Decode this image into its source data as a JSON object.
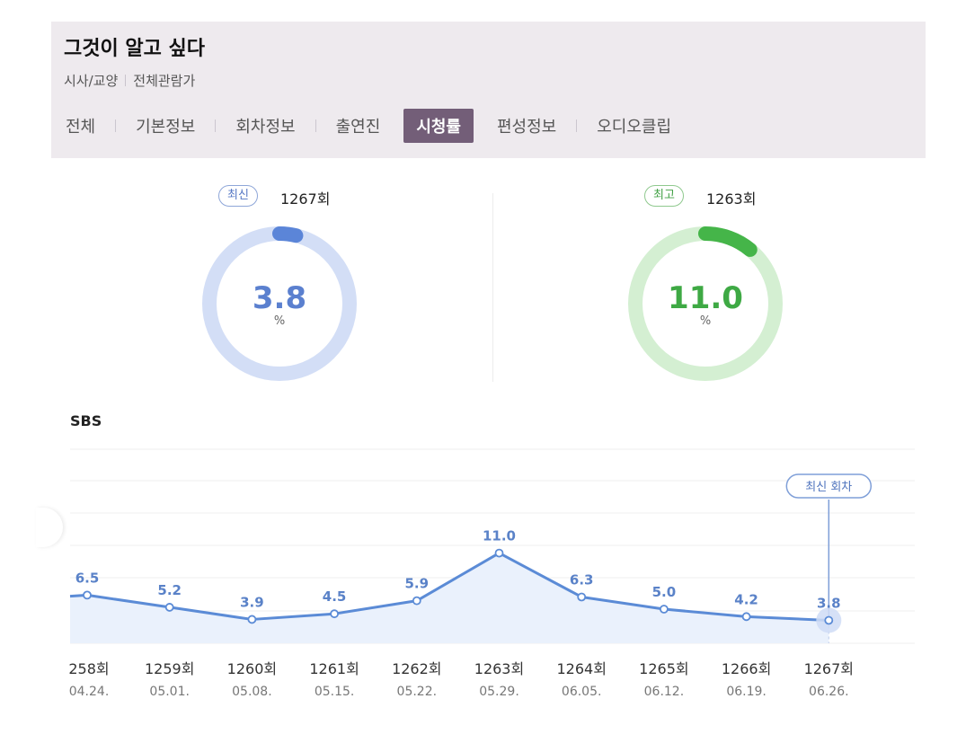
{
  "program": {
    "title": "그것이 알고 싶다",
    "genre": "시사/교양",
    "rating": "전체관람가"
  },
  "tabs": [
    {
      "label": "전체",
      "active": false
    },
    {
      "label": "기본정보",
      "active": false
    },
    {
      "label": "회차정보",
      "active": false
    },
    {
      "label": "출연진",
      "active": false
    },
    {
      "label": "시청률",
      "active": true
    },
    {
      "label": "편성정보",
      "active": false
    },
    {
      "label": "오디오클립",
      "active": false
    }
  ],
  "summary": {
    "latest": {
      "badge": "최신",
      "episode": "1267회",
      "value": "3.8",
      "unit": "%",
      "percent": 3.8,
      "color": "#5b85d8",
      "track": "#d3def6"
    },
    "highest": {
      "badge": "최고",
      "episode": "1263회",
      "value": "11.0",
      "unit": "%",
      "percent": 11.0,
      "color": "#45b549",
      "track": "#d4efd2"
    }
  },
  "channel": "SBS",
  "latest_label": "최신 회차",
  "chart_data": {
    "type": "area",
    "categories": [
      "258회",
      "1259회",
      "1260회",
      "1261회",
      "1262회",
      "1263회",
      "1264회",
      "1265회",
      "1266회",
      "1267회"
    ],
    "dates": [
      "04.24.",
      "05.01.",
      "05.08.",
      "05.15.",
      "05.22.",
      "05.29.",
      "06.05.",
      "06.12.",
      "06.19.",
      "06.26."
    ],
    "values": [
      6.5,
      5.2,
      3.9,
      4.5,
      5.9,
      11.0,
      6.3,
      5.0,
      4.2,
      3.8
    ],
    "value_labels": [
      "6.5",
      "5.2",
      "3.9",
      "4.5",
      "5.9",
      "11.0",
      "6.3",
      "5.0",
      "4.2",
      "3.8"
    ],
    "grid": true,
    "line_color": "#5b8bd6",
    "fill_color": "#eaf1fc"
  }
}
